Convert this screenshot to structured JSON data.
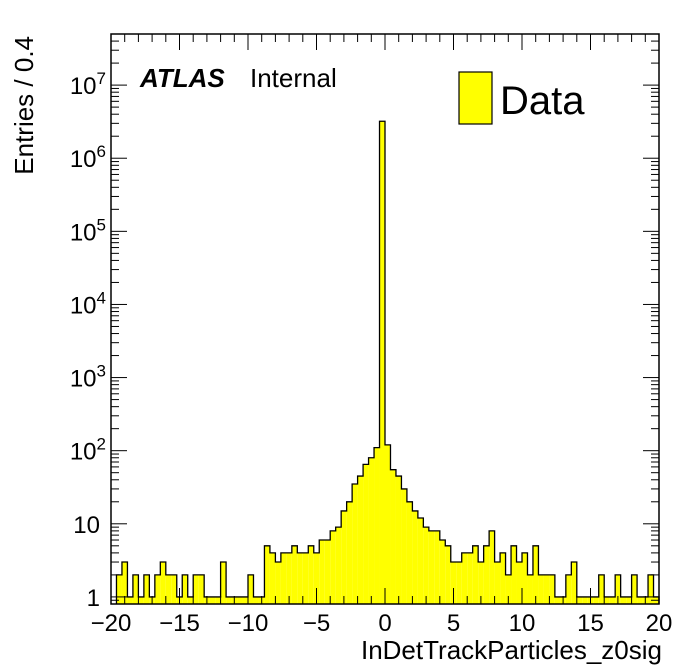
{
  "chart_data": {
    "type": "bar",
    "style": "histogram-step-filled",
    "fill_color": "#ffff00",
    "line_color": "#000000",
    "xlabel": "InDetTrackParticles_z0sig",
    "ylabel": "Entries / 0.4",
    "xlim": [
      -20,
      20
    ],
    "ylim": [
      0.8,
      50000000
    ],
    "yscale": "log",
    "bin_width": 0.4,
    "x_ticks": [
      -20,
      -15,
      -10,
      -5,
      0,
      5,
      10,
      15,
      20
    ],
    "x_tick_labels": [
      "−20",
      "−15",
      "−10",
      "−5",
      "0",
      "5",
      "10",
      "15",
      "20"
    ],
    "y_tick_labels": [
      {
        "value": 1,
        "base": "1",
        "exp": ""
      },
      {
        "value": 10,
        "base": "10",
        "exp": ""
      },
      {
        "value": 100,
        "base": "10",
        "exp": "2"
      },
      {
        "value": 1000,
        "base": "10",
        "exp": "3"
      },
      {
        "value": 10000,
        "base": "10",
        "exp": "4"
      },
      {
        "value": 100000,
        "base": "10",
        "exp": "5"
      },
      {
        "value": 1000000,
        "base": "10",
        "exp": "6"
      },
      {
        "value": 10000000,
        "base": "10",
        "exp": "7"
      }
    ],
    "grid": false,
    "legend": {
      "position": "top-right",
      "entries": [
        {
          "name": "Data",
          "color": "#ffff00"
        }
      ]
    },
    "annotation": {
      "bold_italic": "ATLAS",
      "normal": "Internal"
    },
    "x_bin_low": [
      -19.6,
      -19.2,
      -18.8,
      -18.4,
      -18.0,
      -17.6,
      -17.2,
      -16.8,
      -16.4,
      -16.0,
      -15.6,
      -15.2,
      -14.8,
      -14.4,
      -14.0,
      -13.6,
      -13.2,
      -12.8,
      -12.4,
      -12.0,
      -11.6,
      -11.2,
      -10.8,
      -10.4,
      -10.0,
      -9.6,
      -9.2,
      -8.8,
      -8.4,
      -8.0,
      -7.6,
      -7.2,
      -6.8,
      -6.4,
      -6.0,
      -5.6,
      -5.2,
      -4.8,
      -4.4,
      -4.0,
      -3.6,
      -3.2,
      -2.8,
      -2.4,
      -2.0,
      -1.6,
      -1.2,
      -0.8,
      -0.4,
      0.0,
      0.4,
      0.8,
      1.2,
      1.6,
      2.0,
      2.4,
      2.8,
      3.2,
      3.6,
      4.0,
      4.4,
      4.8,
      5.2,
      5.6,
      6.0,
      6.4,
      6.8,
      7.2,
      7.6,
      8.0,
      8.4,
      8.8,
      9.2,
      9.6,
      10.0,
      10.4,
      10.8,
      11.2,
      11.6,
      12.0,
      12.4,
      12.8,
      13.2,
      13.6,
      14.0,
      14.4,
      14.8,
      15.2,
      15.6,
      16.0,
      16.4,
      16.8,
      17.2,
      17.6,
      18.0,
      18.4,
      18.8,
      19.2,
      19.6
    ],
    "values": [
      2,
      3,
      1,
      2,
      1,
      2,
      1,
      2,
      3,
      2,
      2,
      1,
      2,
      1,
      2,
      2,
      1,
      1,
      1,
      3,
      1,
      1,
      1,
      1,
      2,
      1,
      1,
      5,
      4,
      3,
      4,
      4,
      5,
      4,
      4,
      5,
      4,
      6,
      6,
      8,
      9,
      15,
      20,
      35,
      45,
      65,
      80,
      110,
      3200000,
      120,
      55,
      45,
      30,
      20,
      15,
      12,
      9,
      8,
      8,
      6,
      5,
      3,
      3,
      4,
      4,
      5,
      3,
      5,
      8,
      3,
      4,
      2,
      5,
      3,
      4,
      2,
      5,
      2,
      2,
      2,
      1,
      1,
      2,
      3,
      1,
      1,
      1,
      1,
      2,
      1,
      1,
      2,
      1,
      1,
      2,
      1,
      1,
      2,
      1
    ]
  }
}
